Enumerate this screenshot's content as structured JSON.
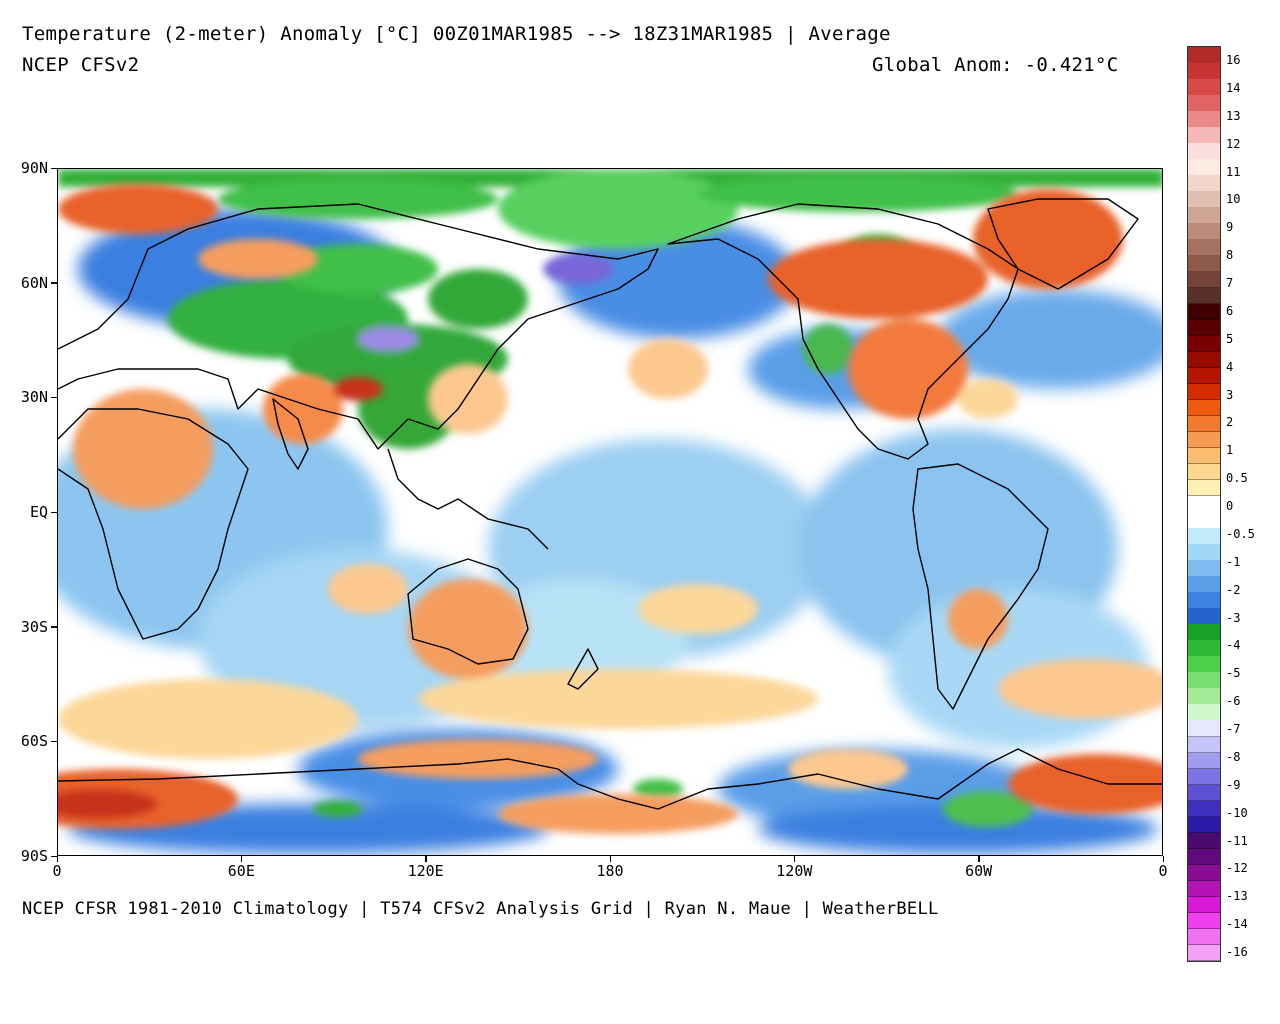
{
  "header": {
    "title": "Temperature (2-meter) Anomaly  [°C] 00Z01MAR1985 --> 18Z31MAR1985 | Average",
    "model": "NCEP CFSv2",
    "global_anomaly": "Global Anom: -0.421°C"
  },
  "footer": {
    "credit": "NCEP CFSR 1981-2010 Climatology | T574 CFSv2 Analysis Grid | Ryan N. Maue | WeatherBELL"
  },
  "axes": {
    "lat_labels": [
      {
        "label": "90N",
        "lat": 90
      },
      {
        "label": "60N",
        "lat": 60
      },
      {
        "label": "30N",
        "lat": 30
      },
      {
        "label": "EQ",
        "lat": 0
      },
      {
        "label": "30S",
        "lat": -30
      },
      {
        "label": "60S",
        "lat": -60
      },
      {
        "label": "90S",
        "lat": -90
      }
    ],
    "lon_labels": [
      {
        "label": "0",
        "lon": 0
      },
      {
        "label": "60E",
        "lon": 60
      },
      {
        "label": "120E",
        "lon": 120
      },
      {
        "label": "180",
        "lon": 180
      },
      {
        "label": "120W",
        "lon": 240
      },
      {
        "label": "60W",
        "lon": 300
      },
      {
        "label": "0",
        "lon": 360
      }
    ]
  },
  "colorbar": {
    "colors": [
      "#b22a2a",
      "#c83434",
      "#d84a4a",
      "#e06464",
      "#ec8a8a",
      "#f5b8b8",
      "#fbdede",
      "#fcebe2",
      "#f2d6cc",
      "#e2bfb2",
      "#cfa595",
      "#bb8c7c",
      "#a67262",
      "#8e5a4a",
      "#74443a",
      "#5c302a",
      "#3f0000",
      "#5a0000",
      "#780000",
      "#960a00",
      "#b41400",
      "#d42e00",
      "#ee5a10",
      "#f47a30",
      "#f89a50",
      "#fbbd70",
      "#fdd890",
      "#fef0b4",
      "#ffffff",
      "#ffffff",
      "#c2ecf8",
      "#a0d8f4",
      "#7ebcf0",
      "#5a9ee8",
      "#3c82e0",
      "#2464cc",
      "#18a028",
      "#30b838",
      "#4cd04c",
      "#78e070",
      "#a4ec98",
      "#d0f8cc",
      "#e8e8fc",
      "#c4c4f8",
      "#a09cf0",
      "#7c74e4",
      "#5c50d4",
      "#4030c0",
      "#2c1aa8",
      "#4a0a6e",
      "#620a7a",
      "#8a0c94",
      "#b412b4",
      "#d81ad8",
      "#f040ee",
      "#f070f0",
      "#f4a0f4"
    ],
    "labels": [
      {
        "text": "16",
        "index": 0
      },
      {
        "text": "14",
        "index": 2
      },
      {
        "text": "13",
        "index": 4
      },
      {
        "text": "12",
        "index": 6
      },
      {
        "text": "11",
        "index": 8
      },
      {
        "text": "10",
        "index": 10
      },
      {
        "text": "9",
        "index": 12
      },
      {
        "text": "8",
        "index": 14
      },
      {
        "text": "7",
        "index": 16
      },
      {
        "text": "6",
        "index": 18
      },
      {
        "text": "5",
        "index": 20
      },
      {
        "text": "4",
        "index": 22
      },
      {
        "text": "3",
        "index": 24
      },
      {
        "text": "2",
        "index": 26
      },
      {
        "text": "1",
        "index": 28
      },
      {
        "text": "0.5",
        "index": 30
      },
      {
        "text": "0",
        "index": 32
      },
      {
        "text": "-0.5",
        "index": 34
      },
      {
        "text": "-1",
        "index": 36
      },
      {
        "text": "-2",
        "index": 38
      },
      {
        "text": "-3",
        "index": 40
      },
      {
        "text": "-4",
        "index": 42
      },
      {
        "text": "-5",
        "index": 44
      },
      {
        "text": "-6",
        "index": 46
      },
      {
        "text": "-7",
        "index": 48
      },
      {
        "text": "-8",
        "index": 50
      },
      {
        "text": "-9",
        "index": 52
      },
      {
        "text": "-10",
        "index": 54
      },
      {
        "text": "-11",
        "index": 56
      },
      {
        "text": "-12",
        "index": 58
      },
      {
        "text": "-13",
        "index": 60
      },
      {
        "text": "-14",
        "index": 62
      },
      {
        "text": "-16",
        "index": 64
      }
    ]
  },
  "palette": {
    "ocean_neutral": "#ffffff",
    "cool_light": "#bfe6f6",
    "cool": "#7ab8ee",
    "cold": "#3a7fe0",
    "very_cold": "#1f5fd0",
    "green_cold": "#33b040",
    "green_colder": "#58d060",
    "purple_extreme": "#7a66d8",
    "warm_light": "#fcd79a",
    "warm": "#f59d5e",
    "hot": "#e8622c",
    "very_hot": "#c8321a",
    "deep_hot": "#8c0e00"
  }
}
